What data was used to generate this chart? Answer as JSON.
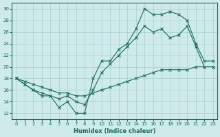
{
  "title": "",
  "xlabel": "Humidex (Indice chaleur)",
  "ylabel": "",
  "bg_color": "#ceeaea",
  "line_color": "#1a6b5a",
  "grid_color": "#a8cece",
  "xlim": [
    -0.5,
    23.5
  ],
  "ylim": [
    11,
    31
  ],
  "xticks": [
    0,
    1,
    2,
    3,
    4,
    5,
    6,
    7,
    8,
    9,
    10,
    11,
    12,
    13,
    14,
    15,
    16,
    17,
    18,
    19,
    20,
    21,
    22,
    23
  ],
  "yticks": [
    12,
    14,
    16,
    18,
    20,
    22,
    24,
    26,
    28,
    30
  ],
  "line1_x": [
    0,
    1,
    2,
    3,
    4,
    5,
    6,
    7,
    8,
    9,
    10,
    11,
    12,
    13,
    14,
    15,
    16,
    17,
    18,
    19,
    20,
    21,
    22,
    23
  ],
  "line1_y": [
    18,
    17,
    16,
    15,
    15,
    13,
    14,
    12,
    12,
    18,
    21,
    21,
    23,
    24,
    26.5,
    30,
    29,
    29,
    29.5,
    29,
    28,
    24,
    21,
    21
  ],
  "line2_x": [
    0,
    1,
    2,
    3,
    4,
    5,
    6,
    7,
    8,
    9,
    10,
    11,
    12,
    13,
    14,
    15,
    16,
    17,
    18,
    19,
    20,
    21,
    22,
    23
  ],
  "line2_y": [
    18,
    17.5,
    17,
    16.5,
    16,
    15.5,
    15.5,
    15,
    15,
    15.5,
    16,
    16.5,
    17,
    17.5,
    18,
    18.5,
    19,
    19.5,
    19.5,
    19.5,
    19.5,
    20,
    20,
    20
  ],
  "line3_x": [
    0,
    1,
    2,
    3,
    4,
    5,
    6,
    7,
    8,
    9,
    10,
    11,
    12,
    13,
    14,
    15,
    16,
    17,
    18,
    19,
    20,
    21,
    22,
    23
  ],
  "line3_y": [
    18,
    17,
    16,
    15.5,
    15,
    14.5,
    15,
    14,
    13.5,
    16,
    19,
    20.5,
    22,
    23.5,
    25,
    27,
    26,
    26.5,
    25,
    25.5,
    27,
    23.5,
    20,
    20
  ]
}
